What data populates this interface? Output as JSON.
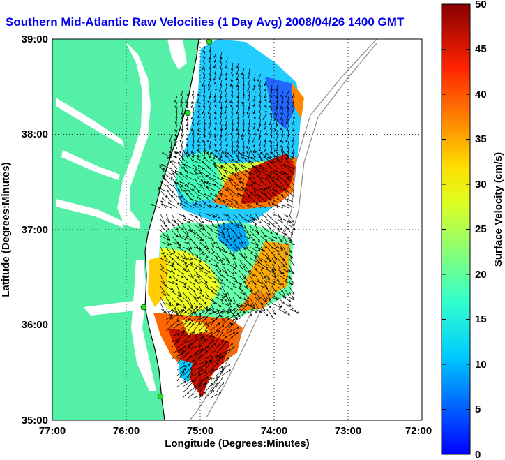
{
  "title": "Southern Mid-Atlantic Raw Velocities (1 Day Avg) 2008/04/26 1400 GMT",
  "map": {
    "xlabel": "Longitude (Degrees:Minutes)",
    "ylabel": "Latitude (Degrees:Minutes)",
    "x_ticks": [
      "77:00",
      "76:00",
      "75:00",
      "74:00",
      "73:00",
      "72:00"
    ],
    "y_ticks": [
      "39:00",
      "38:00",
      "37:00",
      "36:00",
      "35:00"
    ],
    "lon_range": [
      -77,
      -72
    ],
    "lat_range": [
      35,
      39
    ],
    "grid": "dotted",
    "land_color": "#55f0a8",
    "vector_color": "#000000"
  },
  "colorbar": {
    "label": "Surface Velocity (cm/s)",
    "ticks": [
      "0",
      "5",
      "10",
      "15",
      "20",
      "25",
      "30",
      "35",
      "40",
      "45",
      "50"
    ],
    "range": [
      0,
      50
    ],
    "colormap": "jet"
  }
}
